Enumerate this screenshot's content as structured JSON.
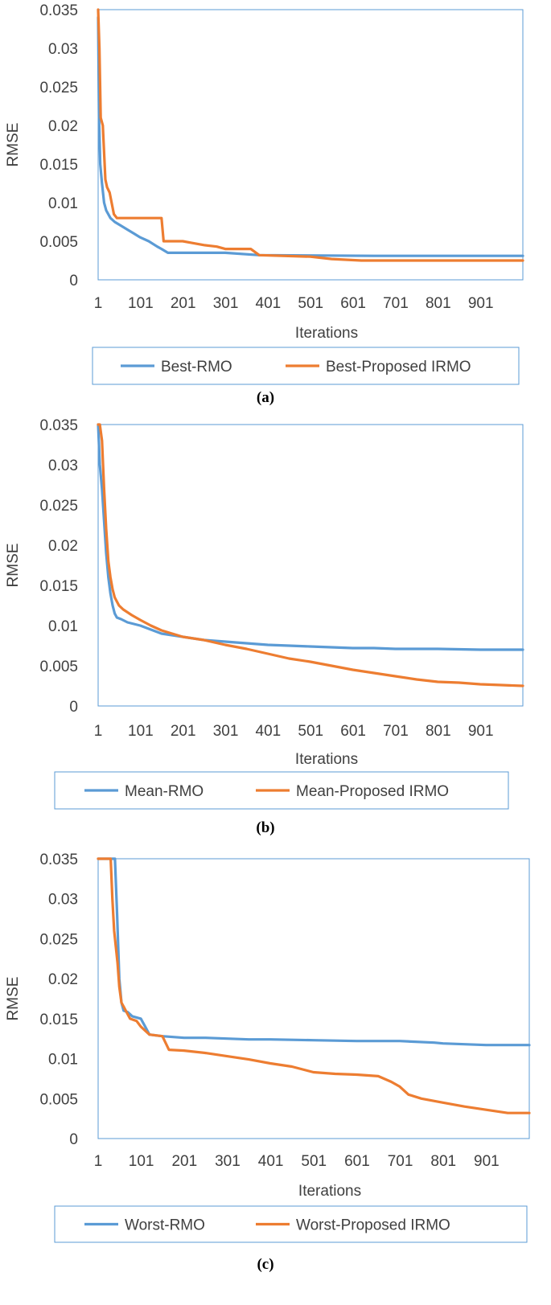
{
  "colors": {
    "rmo": "#5b9bd5",
    "irmo": "#ed7d31",
    "axis_text": "#404040"
  },
  "chart_data": [
    {
      "id": "a",
      "type": "line",
      "caption": "(a)",
      "xlabel": "Iterations",
      "ylabel": "RMSE",
      "xlim": [
        1,
        1000
      ],
      "ylim": [
        0,
        0.035
      ],
      "xticks": [
        "1",
        "101",
        "201",
        "301",
        "401",
        "501",
        "601",
        "701",
        "801",
        "901"
      ],
      "yticks": [
        "0",
        "0.005",
        "0.01",
        "0.015",
        "0.02",
        "0.025",
        "0.03",
        "0.035"
      ],
      "legend": "bottom",
      "series": [
        {
          "name": "Best-RMO",
          "x": [
            1,
            3,
            6,
            10,
            15,
            20,
            30,
            40,
            55,
            70,
            85,
            100,
            120,
            140,
            150,
            165,
            300,
            380,
            650,
            1000
          ],
          "y": [
            0.034,
            0.021,
            0.015,
            0.0125,
            0.01,
            0.009,
            0.008,
            0.0075,
            0.007,
            0.0065,
            0.006,
            0.0055,
            0.005,
            0.0043,
            0.004,
            0.0035,
            0.0035,
            0.0032,
            0.0031,
            0.0031
          ]
        },
        {
          "name": "Best-Proposed IRMO",
          "x": [
            1,
            4,
            7,
            12,
            18,
            22,
            28,
            38,
            45,
            60,
            80,
            150,
            155,
            175,
            200,
            220,
            250,
            280,
            300,
            360,
            380,
            500,
            550,
            620,
            700,
            1000
          ],
          "y": [
            0.035,
            0.03,
            0.021,
            0.02,
            0.013,
            0.012,
            0.0113,
            0.0085,
            0.008,
            0.008,
            0.008,
            0.008,
            0.005,
            0.005,
            0.005,
            0.0048,
            0.0045,
            0.0043,
            0.004,
            0.004,
            0.0032,
            0.003,
            0.0027,
            0.0025,
            0.0025,
            0.0025
          ]
        }
      ]
    },
    {
      "id": "b",
      "type": "line",
      "caption": "(b)",
      "xlabel": "Iterations",
      "ylabel": "RMSE",
      "xlim": [
        1,
        1000
      ],
      "ylim": [
        0,
        0.035
      ],
      "xticks": [
        "1",
        "101",
        "201",
        "301",
        "401",
        "501",
        "601",
        "701",
        "801",
        "901"
      ],
      "yticks": [
        "0",
        "0.005",
        "0.01",
        "0.015",
        "0.02",
        "0.025",
        "0.03",
        "0.035"
      ],
      "legend": "bottom",
      "series": [
        {
          "name": "Mean-RMO",
          "x": [
            1,
            5,
            10,
            15,
            20,
            25,
            30,
            35,
            40,
            45,
            55,
            70,
            100,
            150,
            200,
            250,
            300,
            350,
            400,
            450,
            500,
            550,
            600,
            650,
            700,
            800,
            900,
            1000
          ],
          "y": [
            0.035,
            0.03,
            0.027,
            0.023,
            0.019,
            0.016,
            0.014,
            0.0125,
            0.0115,
            0.011,
            0.0108,
            0.0104,
            0.01,
            0.009,
            0.0086,
            0.0082,
            0.008,
            0.0078,
            0.0076,
            0.0075,
            0.0074,
            0.0073,
            0.0072,
            0.0072,
            0.0071,
            0.0071,
            0.007,
            0.007
          ]
        },
        {
          "name": "Mean-Proposed IRMO",
          "x": [
            1,
            5,
            10,
            15,
            20,
            25,
            30,
            35,
            40,
            50,
            60,
            80,
            100,
            125,
            150,
            175,
            200,
            250,
            300,
            350,
            400,
            450,
            500,
            550,
            600,
            650,
            700,
            750,
            800,
            850,
            900,
            950,
            1000
          ],
          "y": [
            0.035,
            0.035,
            0.033,
            0.027,
            0.022,
            0.018,
            0.016,
            0.0145,
            0.0135,
            0.0125,
            0.012,
            0.0113,
            0.0107,
            0.01,
            0.0094,
            0.009,
            0.0086,
            0.0082,
            0.0076,
            0.0071,
            0.0065,
            0.0059,
            0.0055,
            0.005,
            0.0045,
            0.0041,
            0.0037,
            0.0033,
            0.003,
            0.0029,
            0.0027,
            0.0026,
            0.0025
          ]
        }
      ]
    },
    {
      "id": "c",
      "type": "line",
      "caption": "(c)",
      "xlabel": "Iterations",
      "ylabel": "RMSE",
      "xlim": [
        1,
        1000
      ],
      "ylim": [
        0,
        0.035
      ],
      "xticks": [
        "1",
        "101",
        "201",
        "301",
        "401",
        "501",
        "601",
        "701",
        "801",
        "901"
      ],
      "yticks": [
        "0",
        "0.005",
        "0.01",
        "0.015",
        "0.02",
        "0.025",
        "0.03",
        "0.035"
      ],
      "legend": "bottom",
      "series": [
        {
          "name": "Worst-RMO",
          "x": [
            1,
            40,
            45,
            50,
            55,
            60,
            70,
            80,
            100,
            110,
            120,
            150,
            200,
            250,
            300,
            350,
            400,
            500,
            600,
            700,
            780,
            800,
            900,
            1000
          ],
          "y": [
            0.035,
            0.035,
            0.028,
            0.02,
            0.017,
            0.016,
            0.0158,
            0.0153,
            0.015,
            0.014,
            0.013,
            0.0128,
            0.0126,
            0.0126,
            0.0125,
            0.0124,
            0.0124,
            0.0123,
            0.0122,
            0.0122,
            0.012,
            0.0119,
            0.0117,
            0.0117
          ]
        },
        {
          "name": "Worst-Proposed IRMO",
          "x": [
            1,
            30,
            34,
            38,
            42,
            46,
            50,
            55,
            60,
            65,
            75,
            90,
            100,
            110,
            120,
            150,
            165,
            200,
            250,
            300,
            350,
            400,
            450,
            500,
            550,
            600,
            650,
            680,
            700,
            720,
            750,
            800,
            850,
            900,
            950,
            1000
          ],
          "y": [
            0.035,
            0.035,
            0.03,
            0.026,
            0.024,
            0.022,
            0.019,
            0.017,
            0.0165,
            0.016,
            0.015,
            0.0147,
            0.014,
            0.0135,
            0.013,
            0.0128,
            0.0111,
            0.011,
            0.0107,
            0.0103,
            0.0099,
            0.0094,
            0.009,
            0.0083,
            0.0081,
            0.008,
            0.0078,
            0.0071,
            0.0065,
            0.0055,
            0.005,
            0.0045,
            0.004,
            0.0036,
            0.0032,
            0.0032
          ]
        }
      ]
    }
  ]
}
